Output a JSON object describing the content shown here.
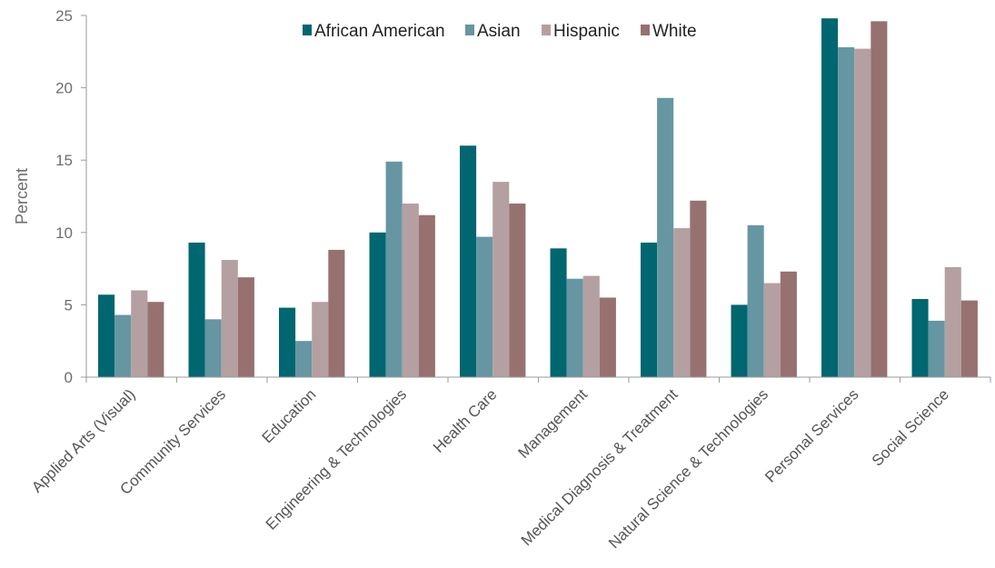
{
  "chart_data": {
    "type": "bar",
    "title": "",
    "xlabel": "",
    "ylabel": "Percent",
    "ylim": [
      0,
      25
    ],
    "yticks": [
      0,
      5,
      10,
      15,
      20,
      25
    ],
    "grid": false,
    "legend_position": "top-center",
    "categories": [
      "Applied Arts (Visual)",
      "Community Services",
      "Education",
      "Engineering & Technologies",
      "Health Care",
      "Management",
      "Medical Diagnosis & Treatment",
      "Natural Science & Technologies",
      "Personal Services",
      "Social Science"
    ],
    "series": [
      {
        "name": "African American",
        "color": "#006670",
        "values": [
          5.7,
          9.3,
          4.8,
          10.0,
          16.0,
          8.9,
          9.3,
          5.0,
          24.8,
          5.4
        ]
      },
      {
        "name": "Asian",
        "color": "#6596a2",
        "values": [
          4.3,
          4.0,
          2.5,
          14.9,
          9.7,
          6.8,
          19.3,
          10.5,
          22.8,
          3.9
        ]
      },
      {
        "name": "Hispanic",
        "color": "#b4a0a1",
        "values": [
          6.0,
          8.1,
          5.2,
          12.0,
          13.5,
          7.0,
          10.3,
          6.5,
          22.7,
          7.6
        ]
      },
      {
        "name": "White",
        "color": "#967170",
        "values": [
          5.2,
          6.9,
          8.8,
          11.2,
          12.0,
          5.5,
          12.2,
          7.3,
          24.6,
          5.3
        ]
      }
    ]
  }
}
